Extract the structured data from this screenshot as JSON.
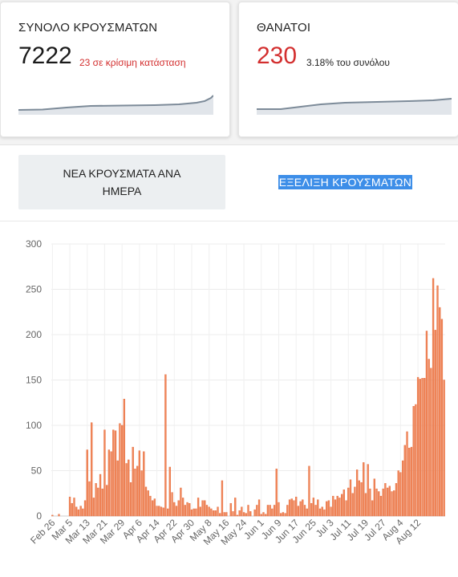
{
  "cases_card": {
    "title": "ΣΥΝΟΛΟ ΚΡΟΥΣΜΑΤΩΝ",
    "value": "7222",
    "note": "23 σε κρίσιμη κατάσταση",
    "note_color": "#d32f2f"
  },
  "deaths_card": {
    "title": "ΘΑΝΑΤΟΙ",
    "value": "230",
    "value_color": "#d32f2f",
    "note": "3.18% του συνόλου"
  },
  "tabs": {
    "daily": "ΝΕΑ ΚΡΟΥΣΜΑΤΑ ΑΝΑ ΗΜΕΡΑ",
    "evolution": "ΕΞΕΛΙΞΗ ΚΡΟΥΣΜΑΤΩΝ"
  },
  "chart_data": {
    "type": "bar",
    "bar_color": "#f0875a",
    "ylim": [
      0,
      300
    ],
    "y_ticks": [
      "0",
      "50",
      "100",
      "150",
      "200",
      "250",
      "300"
    ],
    "x_tick_labels": [
      "Feb 26",
      "Mar 5",
      "Mar 13",
      "Mar 21",
      "Mar 29",
      "Apr 6",
      "Apr 14",
      "Apr 22",
      "Apr 30",
      "May 8",
      "May 16",
      "May 24",
      "Jun 1",
      "Jun 9",
      "Jun 17",
      "Jun 25",
      "Jul 3",
      "Jul 11",
      "Jul 19",
      "Jul 27",
      "Aug 4",
      "Aug 12"
    ],
    "values": [
      1,
      0,
      0,
      2,
      0,
      0,
      0,
      0,
      21,
      14,
      20,
      10,
      7,
      11,
      8,
      17,
      73,
      38,
      103,
      20,
      36,
      31,
      46,
      30,
      95,
      34,
      73,
      71,
      95,
      94,
      61,
      102,
      100,
      129,
      58,
      62,
      37,
      76,
      52,
      55,
      72,
      50,
      71,
      32,
      28,
      22,
      17,
      19,
      11,
      11,
      10,
      9,
      156,
      8,
      54,
      26,
      15,
      11,
      17,
      31,
      20,
      12,
      15,
      14,
      7,
      8,
      8,
      20,
      10,
      17,
      17,
      12,
      10,
      8,
      6,
      6,
      10,
      3,
      39,
      4,
      4,
      0,
      14,
      5,
      20,
      1,
      6,
      10,
      4,
      3,
      12,
      5,
      0,
      7,
      12,
      18,
      2,
      4,
      2,
      12,
      12,
      8,
      12,
      52,
      15,
      3,
      4,
      3,
      12,
      18,
      19,
      17,
      21,
      11,
      16,
      18,
      12,
      8,
      55,
      14,
      20,
      12,
      18,
      8,
      10,
      7,
      16,
      17,
      10,
      22,
      18,
      22,
      20,
      24,
      29,
      17,
      31,
      40,
      25,
      32,
      51,
      39,
      37,
      59,
      25,
      57,
      30,
      17,
      41,
      30,
      27,
      22,
      30,
      36,
      31,
      33,
      27,
      28,
      36,
      50,
      48,
      61,
      78,
      93,
      75,
      76,
      121,
      123,
      153,
      151,
      152,
      152,
      204,
      173,
      163,
      262,
      205,
      254,
      230,
      217,
      150
    ]
  }
}
